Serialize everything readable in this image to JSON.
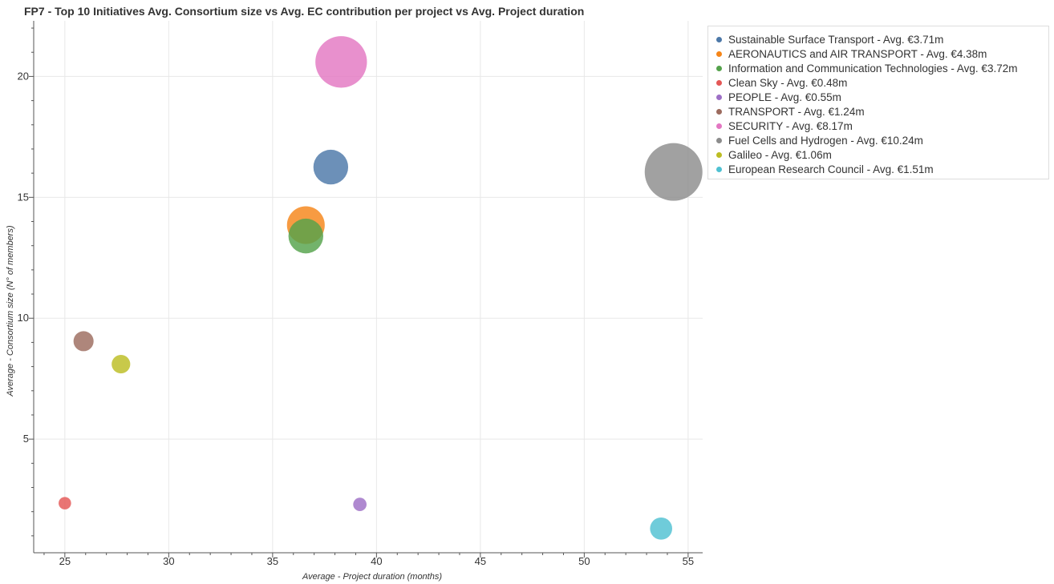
{
  "chart_data": {
    "type": "scatter",
    "title": "FP7 - Top 10 Initiatives Avg. Consortium size vs Avg. EC contribution per project vs Avg. Project duration",
    "xlabel": "Average - Project duration (months)",
    "ylabel": "Average - Consortium size (N° of members)",
    "xlim": [
      23.5,
      55.7
    ],
    "ylim": [
      0.3,
      22.3
    ],
    "x_ticks": [
      "25",
      "30",
      "35",
      "40",
      "45",
      "50",
      "55"
    ],
    "y_ticks": [
      "5",
      "10",
      "15",
      "20"
    ],
    "x_tick_values": [
      25,
      30,
      35,
      40,
      45,
      50,
      55
    ],
    "y_tick_values": [
      5,
      10,
      15,
      20
    ],
    "grid": true,
    "legend_position": "top-right",
    "size_encoding": "Avg. EC contribution per project (€m)",
    "series": [
      {
        "label": "Sustainable Surface Transport - Avg. €3.71m",
        "x": 37.8,
        "y": 16.25,
        "size": 3.71,
        "color": "#4c78a8"
      },
      {
        "label": "AERONAUTICS and AIR TRANSPORT - Avg. €4.38m",
        "x": 36.6,
        "y": 13.85,
        "size": 4.38,
        "color": "#f58518"
      },
      {
        "label": "Information and Communication Technologies - Avg. €3.72m",
        "x": 36.6,
        "y": 13.4,
        "size": 3.72,
        "color": "#54a24b"
      },
      {
        "label": "Clean Sky - Avg. €0.48m",
        "x": 25.0,
        "y": 2.35,
        "size": 0.48,
        "color": "#e45756"
      },
      {
        "label": "PEOPLE - Avg. €0.55m",
        "x": 39.2,
        "y": 2.3,
        "size": 0.55,
        "color": "#9d6fc6"
      },
      {
        "label": "TRANSPORT - Avg. €1.24m",
        "x": 25.9,
        "y": 9.05,
        "size": 1.24,
        "color": "#9c6b5e"
      },
      {
        "label": "SECURITY - Avg. €8.17m",
        "x": 38.3,
        "y": 20.6,
        "size": 8.17,
        "color": "#e377c2"
      },
      {
        "label": "Fuel Cells and Hydrogen - Avg. €10.24m",
        "x": 54.3,
        "y": 16.05,
        "size": 10.24,
        "color": "#8c8c8c"
      },
      {
        "label": "Galileo - Avg. €1.06m",
        "x": 27.7,
        "y": 8.1,
        "size": 1.06,
        "color": "#bcbd22"
      },
      {
        "label": "European Research Council - Avg. €1.51m",
        "x": 53.7,
        "y": 1.3,
        "size": 1.51,
        "color": "#4fc1d2"
      }
    ]
  }
}
